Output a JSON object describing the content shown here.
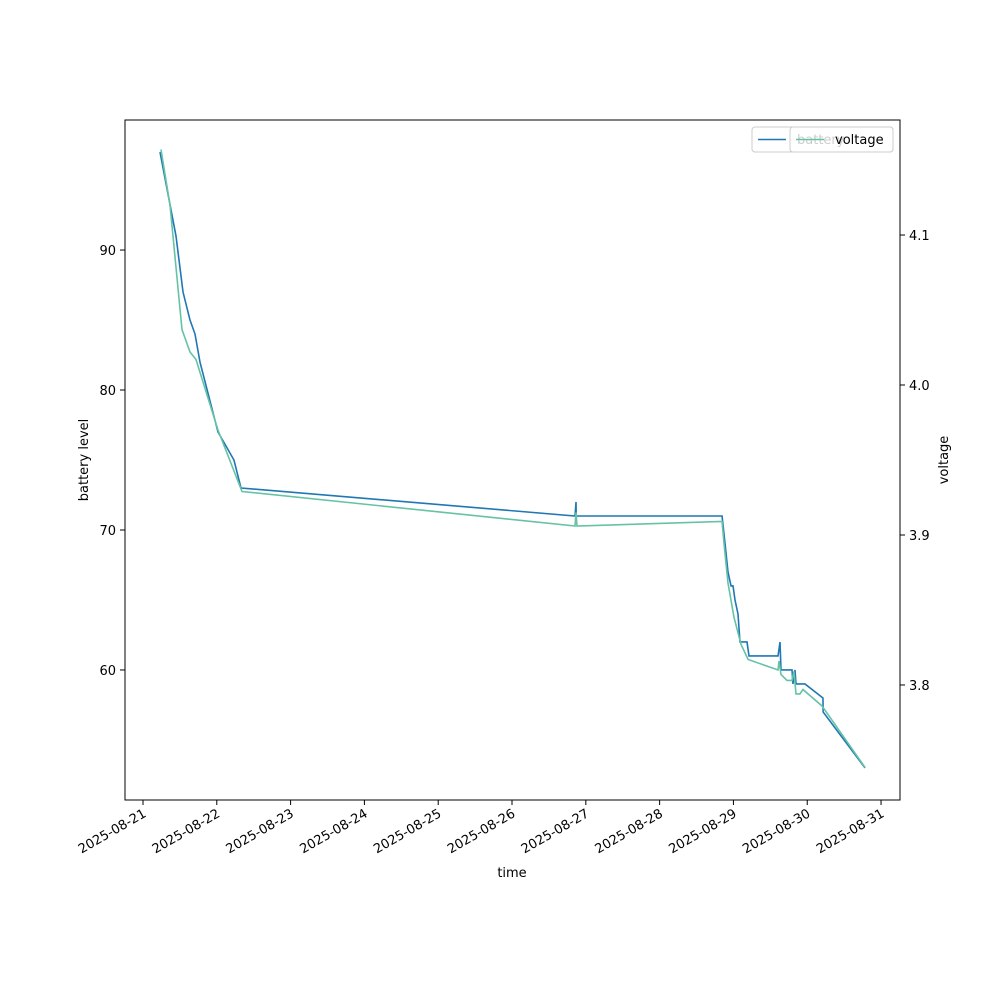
{
  "chart_data": {
    "type": "line",
    "xlabel": "time",
    "ylabel": "battery level",
    "y2label": "voltage",
    "xlim": [
      "2025-08-20T18:09",
      "2025-08-31T06:10"
    ],
    "xticks": [
      "2025-08-21",
      "2025-08-22",
      "2025-08-23",
      "2025-08-24",
      "2025-08-25",
      "2025-08-26",
      "2025-08-27",
      "2025-08-28",
      "2025-08-29",
      "2025-08-30",
      "2025-08-31"
    ],
    "ylim": [
      50.71,
      99.29
    ],
    "yticks": [
      60,
      70,
      80,
      90
    ],
    "y2lim": [
      3.7233,
      4.1767
    ],
    "y2ticks": [
      3.8,
      3.9,
      {
        "value": 4.0,
        "label": "4.0"
      },
      4.1
    ],
    "legend": "upper right",
    "series": [
      {
        "name": "battery",
        "color": "#1f77b4",
        "x": [
          "2025-08-21T05:32",
          "2025-08-21T08:08",
          "2025-08-21T10:44",
          "2025-08-21T13:01",
          "2025-08-21T15:17",
          "2025-08-21T16:55",
          "2025-08-21T18:32",
          "2025-08-22T00:23",
          "2025-08-22T02:59",
          "2025-08-22T05:35",
          "2025-08-22T07:52",
          "2025-08-26T20:30",
          "2025-08-26T20:49",
          "2025-08-26T20:52",
          "2025-08-28T20:18",
          "2025-08-28T21:17",
          "2025-08-28T22:14",
          "2025-08-28T23:13",
          "2025-08-28T23:52",
          "2025-08-29T00:31",
          "2025-08-29T01:29",
          "2025-08-29T02:08",
          "2025-08-29T04:25",
          "2025-08-29T05:04",
          "2025-08-29T14:30",
          "2025-08-29T15:09",
          "2025-08-29T15:28",
          "2025-08-29T19:03",
          "2025-08-29T19:22",
          "2025-08-29T20:01",
          "2025-08-29T20:21",
          "2025-08-29T23:16",
          "2025-08-30T05:07",
          "2025-08-30T05:10",
          "2025-08-30T18:48"
        ],
        "values": [
          97,
          94,
          91,
          87,
          85,
          84,
          82,
          77,
          76,
          75,
          73,
          71,
          72,
          71,
          71,
          69,
          67,
          66,
          66,
          65,
          64,
          62,
          62,
          61,
          61,
          62,
          60,
          60,
          59,
          60,
          59,
          59,
          58,
          57,
          53
        ]
      },
      {
        "name": "voltage",
        "color": "#66c2a5",
        "axis": "y2",
        "x": [
          "2025-08-21T05:51",
          "2025-08-21T08:47",
          "2025-08-21T12:41",
          "2025-08-21T15:17",
          "2025-08-21T17:14",
          "2025-08-22T00:23",
          "2025-08-22T08:12",
          "2025-08-26T20:30",
          "2025-08-26T20:49",
          "2025-08-26T21:07",
          "2025-08-28T20:18",
          "2025-08-28T20:57",
          "2025-08-28T22:14",
          "2025-08-29T00:12",
          "2025-08-29T02:29",
          "2025-08-29T04:47",
          "2025-08-29T14:30",
          "2025-08-29T14:50",
          "2025-08-29T15:28",
          "2025-08-29T17:25",
          "2025-08-29T19:03",
          "2025-08-29T19:41",
          "2025-08-29T20:21",
          "2025-08-29T21:38",
          "2025-08-29T22:36",
          "2025-08-30T04:48",
          "2025-08-30T18:48"
        ],
        "values": [
          4.157,
          4.12,
          4.037,
          4.022,
          4.017,
          3.97,
          3.929,
          3.906,
          3.915,
          3.906,
          3.909,
          3.894,
          3.868,
          3.845,
          3.827,
          3.817,
          3.81,
          3.816,
          3.807,
          3.803,
          3.803,
          3.809,
          3.794,
          3.794,
          3.797,
          3.786,
          3.745
        ]
      }
    ]
  }
}
